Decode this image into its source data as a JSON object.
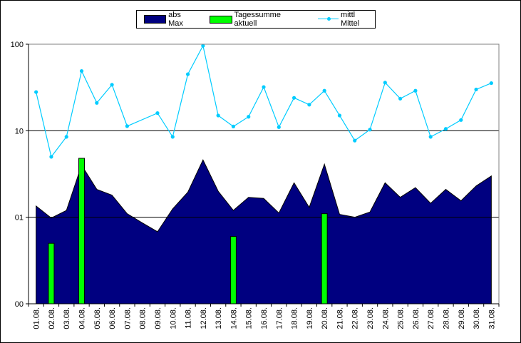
{
  "chart_data": {
    "type": "area",
    "categories": [
      "01.08.",
      "02.08.",
      "03.08.",
      "04.08.",
      "05.08.",
      "06.08.",
      "07.08.",
      "08.08.",
      "09.08.",
      "10.08.",
      "11.08.",
      "12.08.",
      "13.08.",
      "14.08.",
      "15.08.",
      "16.08.",
      "17.08.",
      "18.08.",
      "19.08.",
      "20.08.",
      "21.08.",
      "22.08.",
      "23.08.",
      "24.08.",
      "25.08.",
      "26.08.",
      "27.08.",
      "28.08.",
      "29.08.",
      "30.08.",
      "31.08."
    ],
    "yscale": "log",
    "ylim": [
      0.1,
      100
    ],
    "y_tick_values": [
      0.1,
      1,
      10,
      100
    ],
    "y_tick_labels": [
      "00",
      "01",
      "10",
      "100"
    ],
    "grid": true,
    "legend_position": "top",
    "series": [
      {
        "name": "abs Max",
        "kind": "area",
        "color": "#000080",
        "values": [
          1.35,
          0.98,
          1.2,
          4.0,
          2.1,
          1.8,
          1.1,
          0.86,
          0.68,
          1.25,
          1.95,
          4.6,
          2.0,
          1.2,
          1.7,
          1.65,
          1.12,
          2.5,
          1.3,
          4.1,
          1.08,
          1.0,
          1.15,
          2.5,
          1.7,
          2.2,
          1.45,
          2.1,
          1.55,
          2.3,
          3.0
        ]
      },
      {
        "name": "Tagessumme aktuell",
        "kind": "bar",
        "color": "#00ff00",
        "values": [
          null,
          0.5,
          null,
          4.8,
          null,
          null,
          null,
          null,
          null,
          null,
          null,
          null,
          null,
          0.6,
          null,
          null,
          null,
          null,
          null,
          1.1,
          null,
          null,
          null,
          null,
          null,
          null,
          null,
          null,
          null,
          null,
          null
        ]
      },
      {
        "name": "mittl Mittel",
        "kind": "line",
        "color": "#00ccff",
        "values": [
          28,
          5,
          8.5,
          49,
          21,
          34,
          11.3,
          null,
          16,
          8.5,
          45,
          96,
          15,
          11.2,
          14.5,
          32,
          11,
          24,
          20,
          29,
          15,
          7.7,
          10.3,
          36,
          23.5,
          29,
          8.5,
          10.5,
          13.3,
          30,
          35.5
        ]
      }
    ]
  }
}
